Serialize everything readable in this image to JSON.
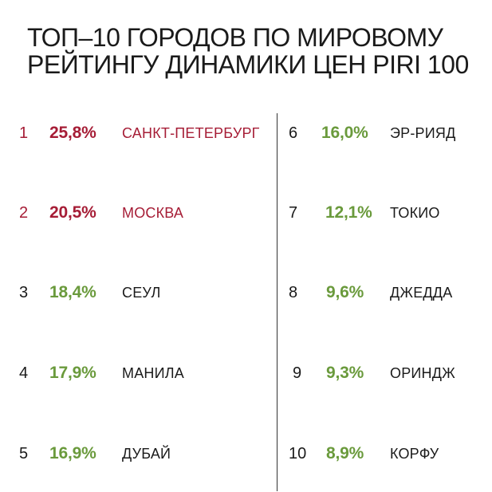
{
  "title_lines": [
    "ТОП–10 ГОРОДОВ ПО МИРОВОМУ",
    "РЕЙТИНГУ ДИНАМИКИ ЦЕН PIRI 100"
  ],
  "colors": {
    "highlight": "#a61d36",
    "growth": "#6a9a3c",
    "text": "#1a1a1a"
  },
  "left": [
    {
      "rank": "1",
      "pct": "25,8%",
      "city": "САНКТ-ПЕТЕРБУРГ"
    },
    {
      "rank": "2",
      "pct": "20,5%",
      "city": "МОСКВА"
    },
    {
      "rank": "3",
      "pct": "18,4%",
      "city": "СЕУЛ"
    },
    {
      "rank": "4",
      "pct": "17,9%",
      "city": "МАНИЛА"
    },
    {
      "rank": "5",
      "pct": "16,9%",
      "city": "ДУБАЙ"
    }
  ],
  "right": [
    {
      "rank": "6",
      "pct": "16,0%",
      "city": "ЭР-РИЯД"
    },
    {
      "rank": "7",
      "pct": "12,1%",
      "city": "ТОКИО"
    },
    {
      "rank": "8",
      "pct": "9,6%",
      "city": "ДЖЕДДА"
    },
    {
      "rank": "9",
      "pct": "9,3%",
      "city": "ОРИНДЖ"
    },
    {
      "rank": "10",
      "pct": "8,9%",
      "city": "КОРФУ"
    }
  ]
}
